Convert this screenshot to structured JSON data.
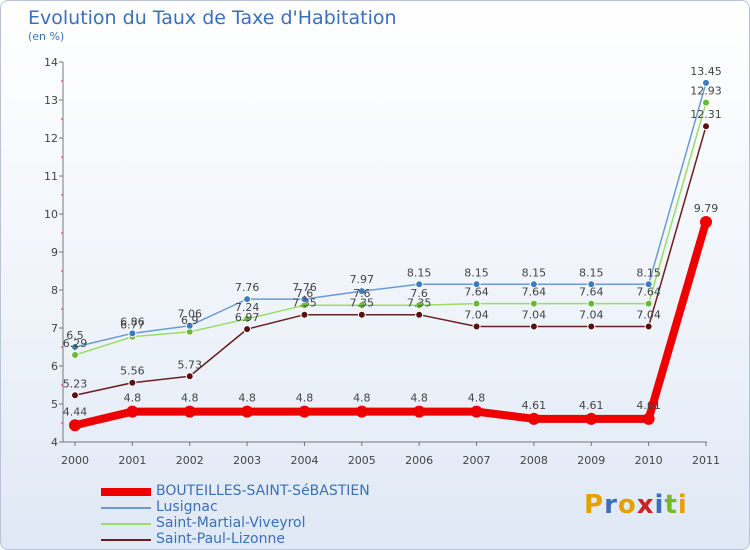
{
  "title": "Evolution du Taux de Taxe d'Habitation",
  "subtitle": "(en %)",
  "logo_text": "Proxiti",
  "colors": {
    "series": [
      "#ee0000",
      "#6b9bd2",
      "#99dd66",
      "#6b1e1e"
    ],
    "marker": [
      "#ee0000",
      "#3b7bc2",
      "#66bb33",
      "#5a1010"
    ],
    "title": "#3a70b7",
    "axis": "#777777"
  },
  "chart_data": {
    "type": "line",
    "title": "Evolution du Taux de Taxe d'Habitation",
    "ylabel": "(en %)",
    "x": [
      2000,
      2001,
      2002,
      2003,
      2004,
      2005,
      2006,
      2007,
      2008,
      2009,
      2010,
      2011
    ],
    "ylim": [
      4,
      14
    ],
    "yticks": [
      4,
      5,
      6,
      7,
      8,
      9,
      10,
      11,
      12,
      13,
      14
    ],
    "grid": false,
    "legend": "bottom-left",
    "series": [
      {
        "name": "BOUTEILLES-SAINT-SéBASTIEN",
        "values": [
          4.44,
          4.8,
          4.8,
          4.8,
          4.8,
          4.8,
          4.8,
          4.8,
          4.61,
          4.61,
          4.61,
          9.79
        ],
        "labels": [
          "4.44",
          "4.8",
          "4.8",
          "4.8",
          "4.8",
          "4.8",
          "4.8",
          "4.8",
          "4.61",
          "4.61",
          "4.61",
          "9.79"
        ]
      },
      {
        "name": "Lusignac",
        "values": [
          6.5,
          6.86,
          7.06,
          7.76,
          7.76,
          7.97,
          8.15,
          8.15,
          8.15,
          8.15,
          8.15,
          13.45
        ],
        "labels": [
          "6.5",
          "6.86",
          "7.06",
          "7.76",
          "7.76",
          "7.97",
          "8.15",
          "8.15",
          "8.15",
          "8.15",
          "8.15",
          "13.45"
        ]
      },
      {
        "name": "Saint-Martial-Viveyrol",
        "values": [
          6.29,
          6.77,
          6.9,
          7.24,
          7.6,
          7.6,
          7.6,
          7.64,
          7.64,
          7.64,
          7.64,
          12.93
        ],
        "labels": [
          "6.29",
          "6.77",
          "6.9",
          "7.24",
          "7.6",
          "7.6",
          "7.6",
          "7.64",
          "7.64",
          "7.64",
          "7.64",
          "12.93"
        ]
      },
      {
        "name": "Saint-Paul-Lizonne",
        "values": [
          5.23,
          5.56,
          5.73,
          6.97,
          7.35,
          7.35,
          7.35,
          7.04,
          7.04,
          7.04,
          7.04,
          12.31
        ],
        "labels": [
          "5.23",
          "5.56",
          "5.73",
          "6.97",
          "7.35",
          "7.35",
          "7.35",
          "7.04",
          "7.04",
          "7.04",
          "7.04",
          "12.31"
        ]
      }
    ]
  }
}
